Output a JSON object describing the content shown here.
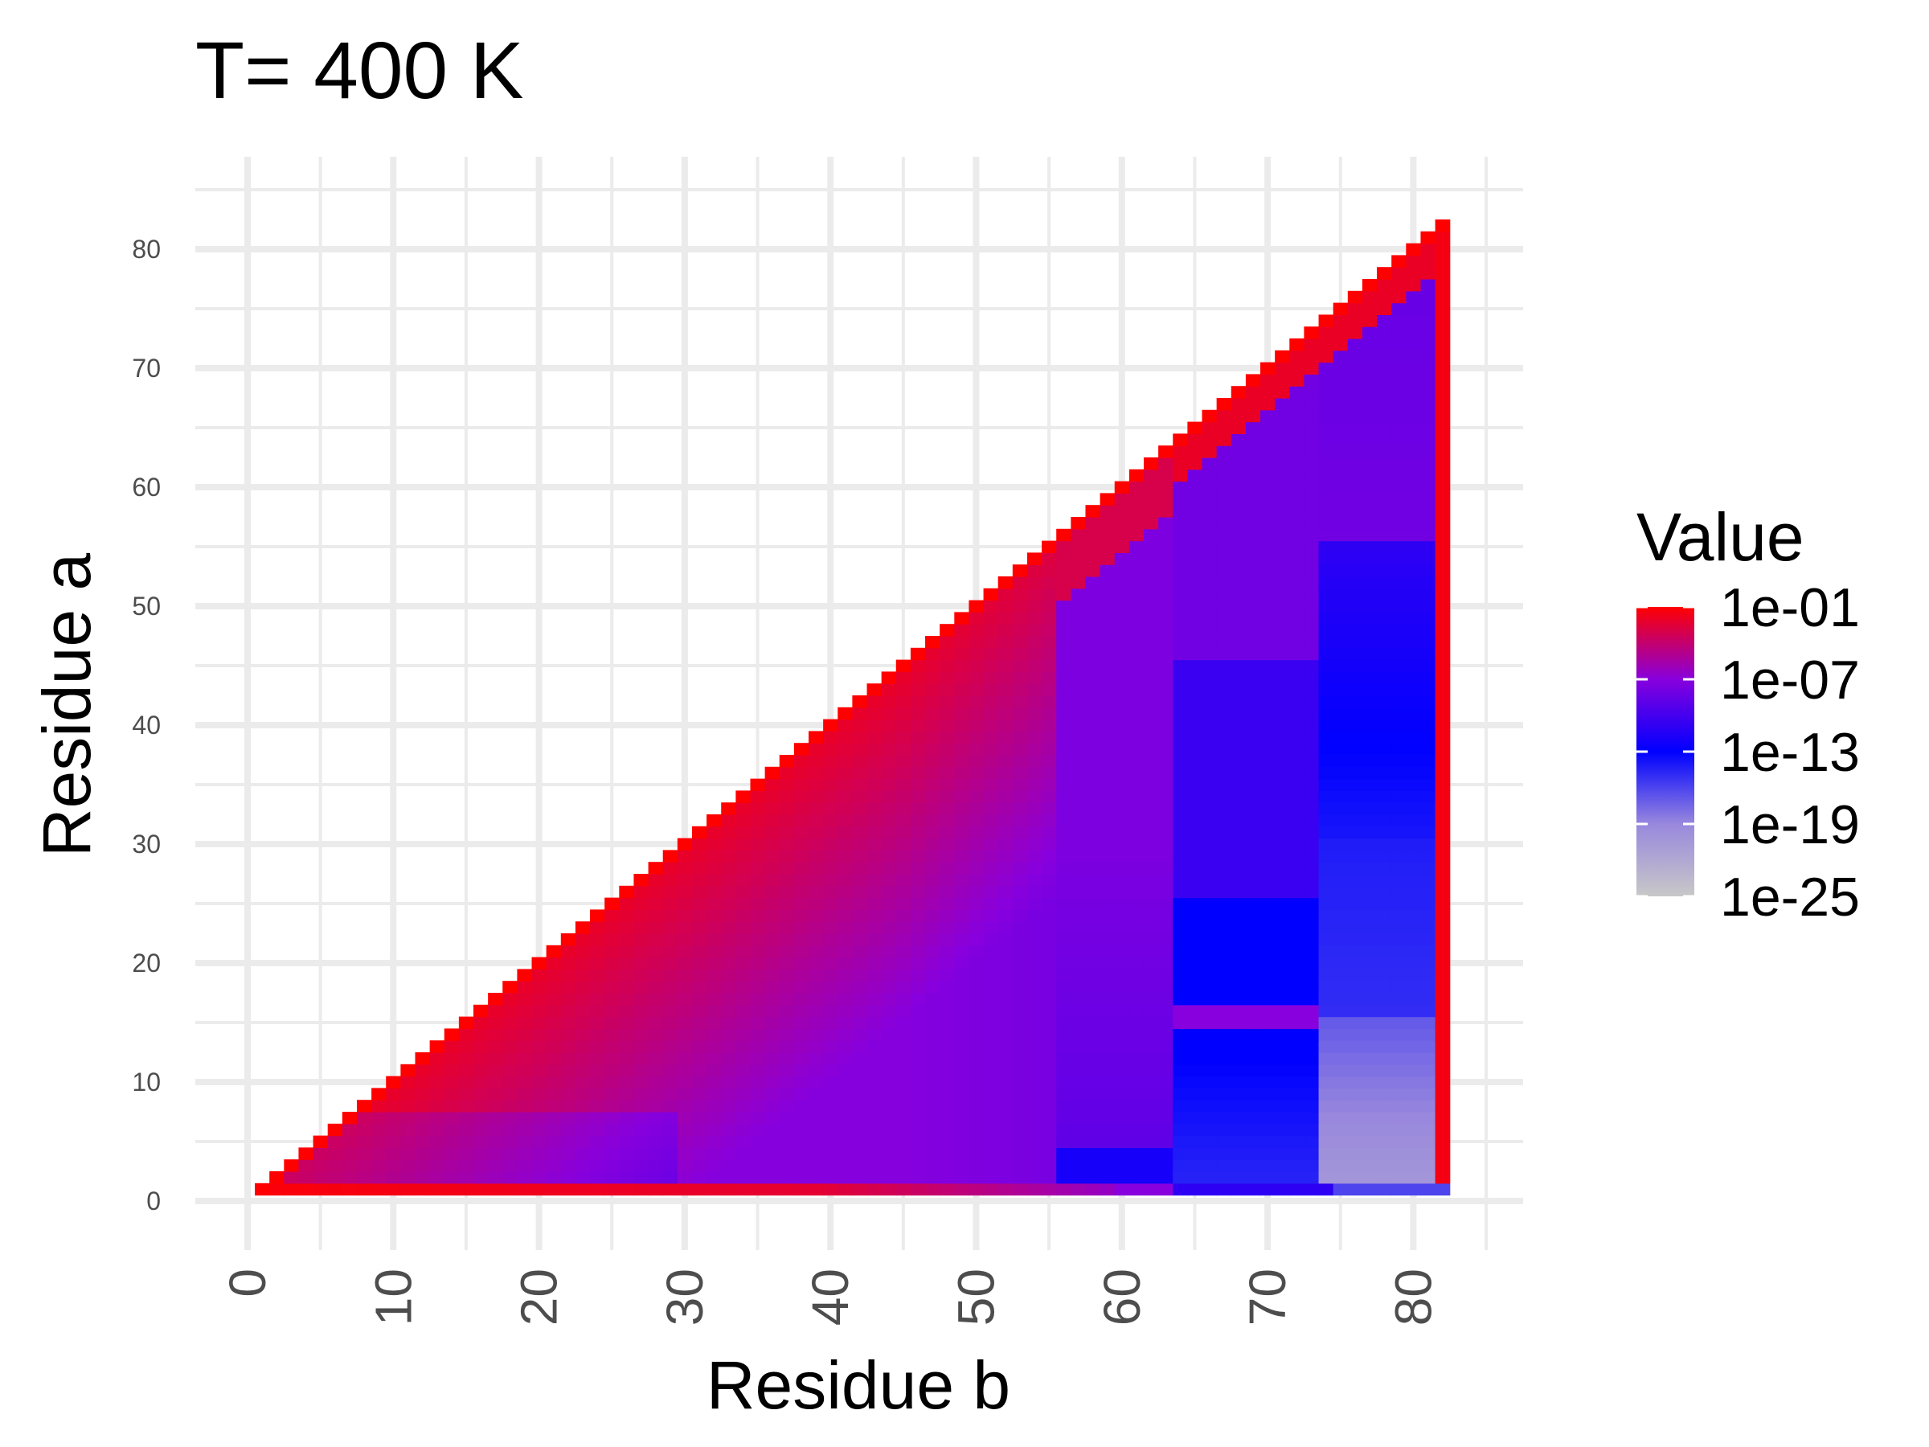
{
  "chart_data": {
    "type": "heatmap",
    "title": "T= 400 K",
    "xlabel": "Residue b",
    "ylabel": "Residue a",
    "xlim": [
      -3.5,
      85.5
    ],
    "ylim": [
      -3.5,
      85.5
    ],
    "x_ticks": [
      0,
      10,
      20,
      30,
      40,
      50,
      60,
      70,
      80
    ],
    "y_ticks": [
      0,
      10,
      20,
      30,
      40,
      50,
      60,
      70,
      80
    ],
    "grid": "on",
    "scale": "log10",
    "n_residues": 82,
    "legend": {
      "title": "Value",
      "position": "right",
      "labels": [
        "1e-01",
        "1e-07",
        "1e-13",
        "1e-19",
        "1e-25"
      ],
      "log_values": [
        -1,
        -7,
        -13,
        -19,
        -25
      ],
      "colors": [
        "#ff0000",
        "#8800dd",
        "#0000ff",
        "#9988dd",
        "#c8c8c8"
      ]
    },
    "regions": [
      {
        "name": "diagonal and row a=1",
        "b_range": [
          1,
          82
        ],
        "a_range": [
          1,
          82
        ],
        "log_value": -1
      },
      {
        "name": "near-diagonal band",
        "log_value": -4
      },
      {
        "name": "middle band b 20-55",
        "log_value": -7
      },
      {
        "name": "band b 55-63",
        "log_value": -9
      },
      {
        "name": "low-a strip b 55-63",
        "b_range": [
          55,
          63
        ],
        "a_range": [
          1,
          4
        ],
        "log_value": -12
      },
      {
        "name": "region b 64-72 low a",
        "b_range": [
          64,
          72
        ],
        "a_range": [
          1,
          25
        ],
        "log_value": -13
      },
      {
        "name": "region b 74-82 low a",
        "b_range": [
          74,
          82
        ],
        "a_range": [
          1,
          15
        ],
        "log_value": -19
      },
      {
        "name": "region b 74-82 mid a",
        "b_range": [
          74,
          82
        ],
        "a_range": [
          15,
          55
        ],
        "log_value": -14
      },
      {
        "name": "region b 74-82 high a",
        "b_range": [
          74,
          82
        ],
        "a_range": [
          55,
          82
        ],
        "log_value": -8
      },
      {
        "name": "last column b=82",
        "b_range": [
          82,
          82
        ],
        "a_range": [
          1,
          82
        ],
        "log_value": -1
      }
    ]
  }
}
